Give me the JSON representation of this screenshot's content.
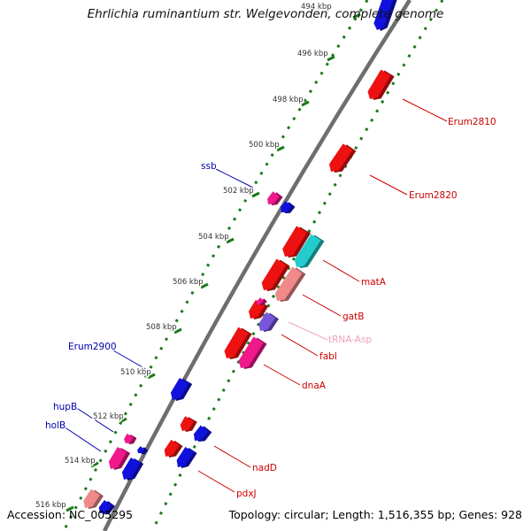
{
  "title": "Ehrlichia ruminantium str. Welgevonden, complete genome",
  "footer": {
    "accession": "Accession: NC_005295",
    "summary": "Topology: circular; Length: 1,516,355 bp; Genes: 928"
  },
  "colors": {
    "backbone": "#6e6e6e",
    "ticks": "#1a7a1a",
    "red": "#ee1111",
    "pink": "#f0188a",
    "blue": "#1111dd",
    "salmon": "#f08a8a",
    "cyan": "#22cccc",
    "purple": "#7755dd",
    "label_red": "#cc0000",
    "label_blue": "#0000aa",
    "label_pink": "#f0a0c0"
  },
  "ruler": [
    {
      "label": "494 kbp"
    },
    {
      "label": "496 kbp"
    },
    {
      "label": "498 kbp"
    },
    {
      "label": "500 kbp"
    },
    {
      "label": "502 kbp"
    },
    {
      "label": "504 kbp"
    },
    {
      "label": "506 kbp"
    },
    {
      "label": "508 kbp"
    },
    {
      "label": "510 kbp"
    },
    {
      "label": "512 kbp"
    },
    {
      "label": "514 kbp"
    },
    {
      "label": "516 kbp"
    }
  ],
  "gene_labels": [
    {
      "name": "Erum2810",
      "color": "red"
    },
    {
      "name": "Erum2820",
      "color": "red"
    },
    {
      "name": "ssb",
      "color": "blue"
    },
    {
      "name": "matA",
      "color": "red"
    },
    {
      "name": "gatB",
      "color": "red"
    },
    {
      "name": "tRNA-Asp",
      "color": "pink"
    },
    {
      "name": "fabI",
      "color": "red"
    },
    {
      "name": "dnaA",
      "color": "red"
    },
    {
      "name": "Erum2900",
      "color": "blue"
    },
    {
      "name": "hupB",
      "color": "blue"
    },
    {
      "name": "holB",
      "color": "blue"
    },
    {
      "name": "nadD",
      "color": "red"
    },
    {
      "name": "pdxJ",
      "color": "red"
    }
  ]
}
